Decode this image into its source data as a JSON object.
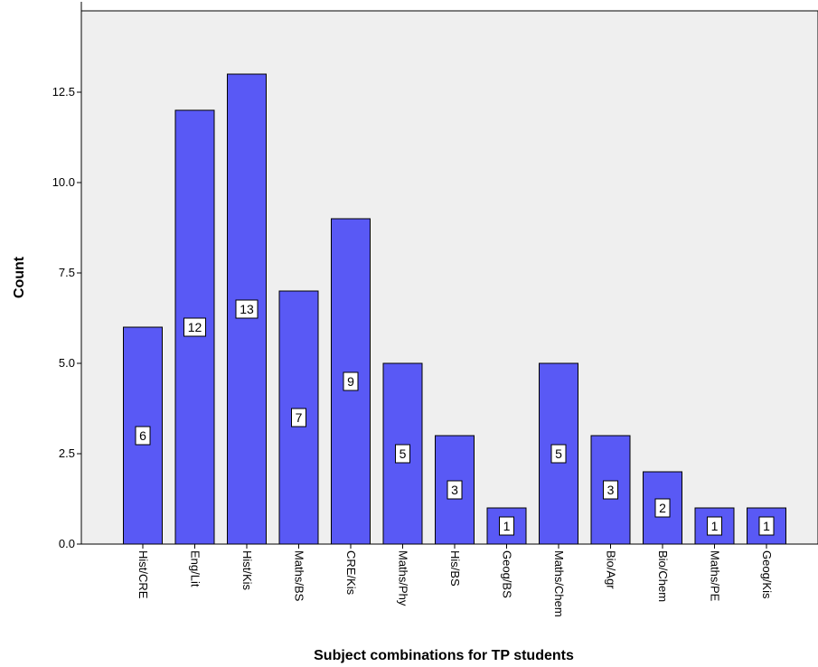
{
  "chart_data": {
    "type": "bar",
    "title": "",
    "xlabel": "Subject combinations for TP students",
    "ylabel": "Count",
    "categories": [
      "Hist/CRE",
      "Eng/Lit",
      "Hist/Kis",
      "Maths/BS",
      "CRE/Kis",
      "Maths/Phy",
      "His/BS",
      "Geog/BS",
      "Maths/Chem",
      "Bio/Agr",
      "Bio/Chem",
      "Maths/PE",
      "Geog/Kis"
    ],
    "values": [
      6,
      12,
      13,
      7,
      9,
      5,
      3,
      1,
      5,
      3,
      2,
      1,
      1
    ],
    "ylim": [
      0,
      15
    ],
    "yticks": [
      "0.0",
      "2.5",
      "5.0",
      "7.5",
      "10.0",
      "12.5"
    ],
    "grid": false,
    "bar_color": "#5959f5",
    "plot_background": "#efefef",
    "show_data_labels": true
  }
}
